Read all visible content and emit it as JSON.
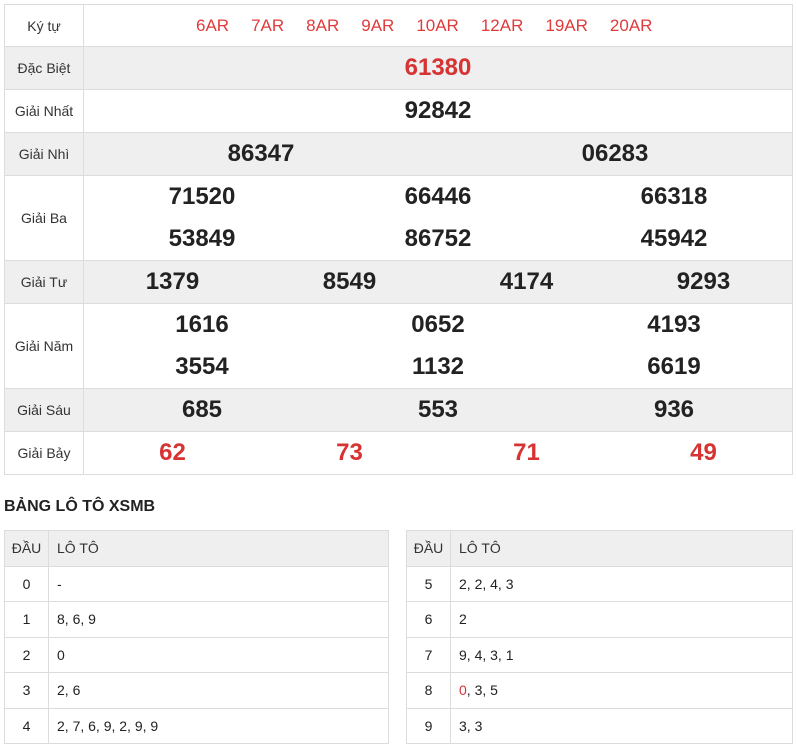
{
  "header": {
    "label": "Ký tự",
    "codes": [
      "6AR",
      "7AR",
      "8AR",
      "9AR",
      "10AR",
      "12AR",
      "19AR",
      "20AR"
    ]
  },
  "prizes": {
    "db": {
      "label": "Đặc Biệt",
      "numbers": [
        "61380"
      ]
    },
    "g1": {
      "label": "Giải Nhất",
      "numbers": [
        "92842"
      ]
    },
    "g2": {
      "label": "Giải Nhì",
      "numbers": [
        "86347",
        "06283"
      ]
    },
    "g3": {
      "label": "Giải Ba",
      "numbers": [
        "71520",
        "66446",
        "66318",
        "53849",
        "86752",
        "45942"
      ]
    },
    "g4": {
      "label": "Giải Tư",
      "numbers": [
        "1379",
        "8549",
        "4174",
        "9293"
      ]
    },
    "g5": {
      "label": "Giải Năm",
      "numbers": [
        "1616",
        "0652",
        "4193",
        "3554",
        "1132",
        "6619"
      ]
    },
    "g6": {
      "label": "Giải Sáu",
      "numbers": [
        "685",
        "553",
        "936"
      ]
    },
    "g7": {
      "label": "Giải Bảy",
      "numbers": [
        "62",
        "73",
        "71",
        "49"
      ]
    }
  },
  "loto": {
    "title": "BẢNG LÔ TÔ XSMB",
    "col_dau": "ĐẦU",
    "col_loto": "LÔ TÔ",
    "left": [
      {
        "dau": "0",
        "values": "-"
      },
      {
        "dau": "1",
        "values": "8, 6, 9"
      },
      {
        "dau": "2",
        "values": "0"
      },
      {
        "dau": "3",
        "values": "2, 6"
      },
      {
        "dau": "4",
        "values": "2, 7, 6, 9, 2, 9, 9"
      }
    ],
    "right": [
      {
        "dau": "5",
        "values": "2, 2, 4, 3"
      },
      {
        "dau": "6",
        "values": "2"
      },
      {
        "dau": "7",
        "values": "9, 4, 3, 1"
      },
      {
        "dau": "8",
        "first": "0",
        "rest": ", 3, 5"
      },
      {
        "dau": "9",
        "values": "3, 3"
      }
    ]
  },
  "colors": {
    "accent_red": "#d63333",
    "row_grey": "#efefef",
    "border": "#dcdcdc"
  }
}
